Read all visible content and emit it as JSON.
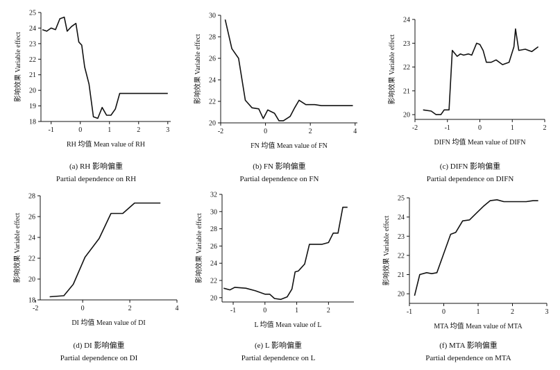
{
  "chart_data": [
    {
      "type": "line",
      "panel": "a",
      "caption_top": "(a) RH 影响偏重",
      "caption_bottom": "Partial dependence on RH",
      "xlabel": "RH 均值  Mean value of RH",
      "ylabel": "影响效果 Variable effect",
      "xlim": [
        -1.35,
        3.1
      ],
      "ylim": [
        18,
        25
      ],
      "xticks": [
        -1,
        0,
        1,
        2,
        3
      ],
      "yticks": [
        18,
        19,
        20,
        21,
        22,
        23,
        24,
        25
      ],
      "x": [
        -1.3,
        -1.15,
        -1.0,
        -0.85,
        -0.7,
        -0.55,
        -0.45,
        -0.3,
        -0.15,
        -0.05,
        0.05,
        0.15,
        0.3,
        0.45,
        0.6,
        0.75,
        0.9,
        1.05,
        1.2,
        1.35,
        1.5,
        1.6,
        2.0,
        2.5,
        3.0
      ],
      "y": [
        23.9,
        23.8,
        24.0,
        23.9,
        24.6,
        24.7,
        23.8,
        24.1,
        24.3,
        23.1,
        22.9,
        21.5,
        20.4,
        18.3,
        18.2,
        18.9,
        18.4,
        18.4,
        18.8,
        19.8,
        19.8,
        19.8,
        19.8,
        19.8,
        19.8
      ]
    },
    {
      "type": "line",
      "panel": "b",
      "caption_top": "(b) FN 影响偏重",
      "caption_bottom": "Partial dependence on FN",
      "xlabel": "FN 均值  Mean value of FN",
      "ylabel": "影响效果 Variable effect",
      "xlim": [
        -2,
        4.1
      ],
      "ylim": [
        20,
        30
      ],
      "xticks": [
        -2,
        0,
        2,
        4
      ],
      "yticks": [
        20,
        22,
        24,
        26,
        28,
        30
      ],
      "x": [
        -1.8,
        -1.5,
        -1.2,
        -0.9,
        -0.6,
        -0.3,
        -0.1,
        0.1,
        0.4,
        0.6,
        0.8,
        1.1,
        1.3,
        1.5,
        1.8,
        2.2,
        2.5,
        3.0,
        3.5,
        3.9
      ],
      "y": [
        29.6,
        26.9,
        26.0,
        22.1,
        21.4,
        21.3,
        20.4,
        21.2,
        20.9,
        20.2,
        20.2,
        20.6,
        21.4,
        22.1,
        21.7,
        21.7,
        21.6,
        21.6,
        21.6,
        21.6
      ]
    },
    {
      "type": "line",
      "panel": "c",
      "caption_top": "(c) DIFN 影响偏重",
      "caption_bottom": "Partial dependence on DIFN",
      "xlabel": "DIFN 均值  Mean value of DIFN",
      "ylabel": "影响效果 Variable effect",
      "xlim": [
        -2,
        2
      ],
      "ylim": [
        19.8,
        24
      ],
      "xticks": [
        -2,
        -1,
        0,
        1,
        2
      ],
      "yticks": [
        20,
        21,
        22,
        23,
        24
      ],
      "x": [
        -1.75,
        -1.5,
        -1.35,
        -1.2,
        -1.1,
        -0.95,
        -0.85,
        -0.7,
        -0.6,
        -0.5,
        -0.35,
        -0.25,
        -0.1,
        0.0,
        0.1,
        0.2,
        0.35,
        0.5,
        0.7,
        0.9,
        1.05,
        1.1,
        1.2,
        1.4,
        1.6,
        1.8
      ],
      "y": [
        20.2,
        20.15,
        20.0,
        20.0,
        20.2,
        20.2,
        22.7,
        22.45,
        22.55,
        22.5,
        22.55,
        22.5,
        23.0,
        22.95,
        22.7,
        22.2,
        22.2,
        22.3,
        22.1,
        22.2,
        22.85,
        23.6,
        22.7,
        22.75,
        22.65,
        22.85
      ]
    },
    {
      "type": "line",
      "panel": "d",
      "caption_top": "(d) DI 影响偏重",
      "caption_bottom": "Partial dependence on DI",
      "xlabel": "DI 均值  Mean value of DI",
      "ylabel": "影响效果 Variable effect",
      "xlim": [
        -1.8,
        4
      ],
      "ylim": [
        18,
        28
      ],
      "xticks": [
        -2,
        0,
        2,
        4
      ],
      "yticks": [
        18,
        20,
        22,
        24,
        26,
        28
      ],
      "x": [
        -1.4,
        -0.8,
        -0.4,
        0.1,
        0.7,
        1.2,
        1.7,
        2.2,
        3.3
      ],
      "y": [
        18.3,
        18.4,
        19.5,
        22.1,
        23.9,
        26.3,
        26.3,
        27.3,
        27.3
      ]
    },
    {
      "type": "line",
      "panel": "e",
      "caption_top": "(e) L 影响偏重",
      "caption_bottom": "Partial dependence on L",
      "xlabel": "L 均值  Mean value of L",
      "ylabel": "影响效果 Variable effect",
      "xlim": [
        -1.35,
        2.8
      ],
      "ylim": [
        19.5,
        32
      ],
      "xticks": [
        -1,
        0,
        1,
        2
      ],
      "yticks": [
        20,
        22,
        24,
        26,
        28,
        30,
        32
      ],
      "x": [
        -1.3,
        -1.1,
        -0.95,
        -0.6,
        -0.3,
        0.0,
        0.15,
        0.3,
        0.5,
        0.7,
        0.85,
        0.95,
        1.05,
        1.25,
        1.4,
        1.6,
        1.8,
        2.0,
        2.15,
        2.3,
        2.45,
        2.6
      ],
      "y": [
        21.1,
        20.9,
        21.2,
        21.1,
        20.8,
        20.4,
        20.4,
        19.9,
        19.8,
        20.1,
        21.0,
        23.0,
        23.1,
        23.9,
        26.2,
        26.2,
        26.2,
        26.4,
        27.5,
        27.5,
        30.5,
        30.5
      ]
    },
    {
      "type": "line",
      "panel": "f",
      "caption_top": "(f) MTA 影响偏重",
      "caption_bottom": "Partial dependence on MTA",
      "xlabel": "MTA 均值  Mean value of MTA",
      "ylabel": "影响效果 Variable effect",
      "xlim": [
        -1,
        3
      ],
      "ylim": [
        19.5,
        25
      ],
      "xticks": [
        -1,
        0,
        1,
        2,
        3
      ],
      "yticks": [
        20,
        21,
        22,
        23,
        24,
        25
      ],
      "x": [
        -0.85,
        -0.7,
        -0.5,
        -0.35,
        -0.2,
        0.0,
        0.2,
        0.35,
        0.55,
        0.75,
        0.95,
        1.15,
        1.35,
        1.55,
        1.75,
        2.0,
        2.4,
        2.6,
        2.75
      ],
      "y": [
        19.9,
        21.0,
        21.1,
        21.05,
        21.1,
        22.1,
        23.1,
        23.2,
        23.8,
        23.85,
        24.2,
        24.55,
        24.85,
        24.9,
        24.8,
        24.8,
        24.8,
        24.85,
        24.85
      ]
    }
  ]
}
